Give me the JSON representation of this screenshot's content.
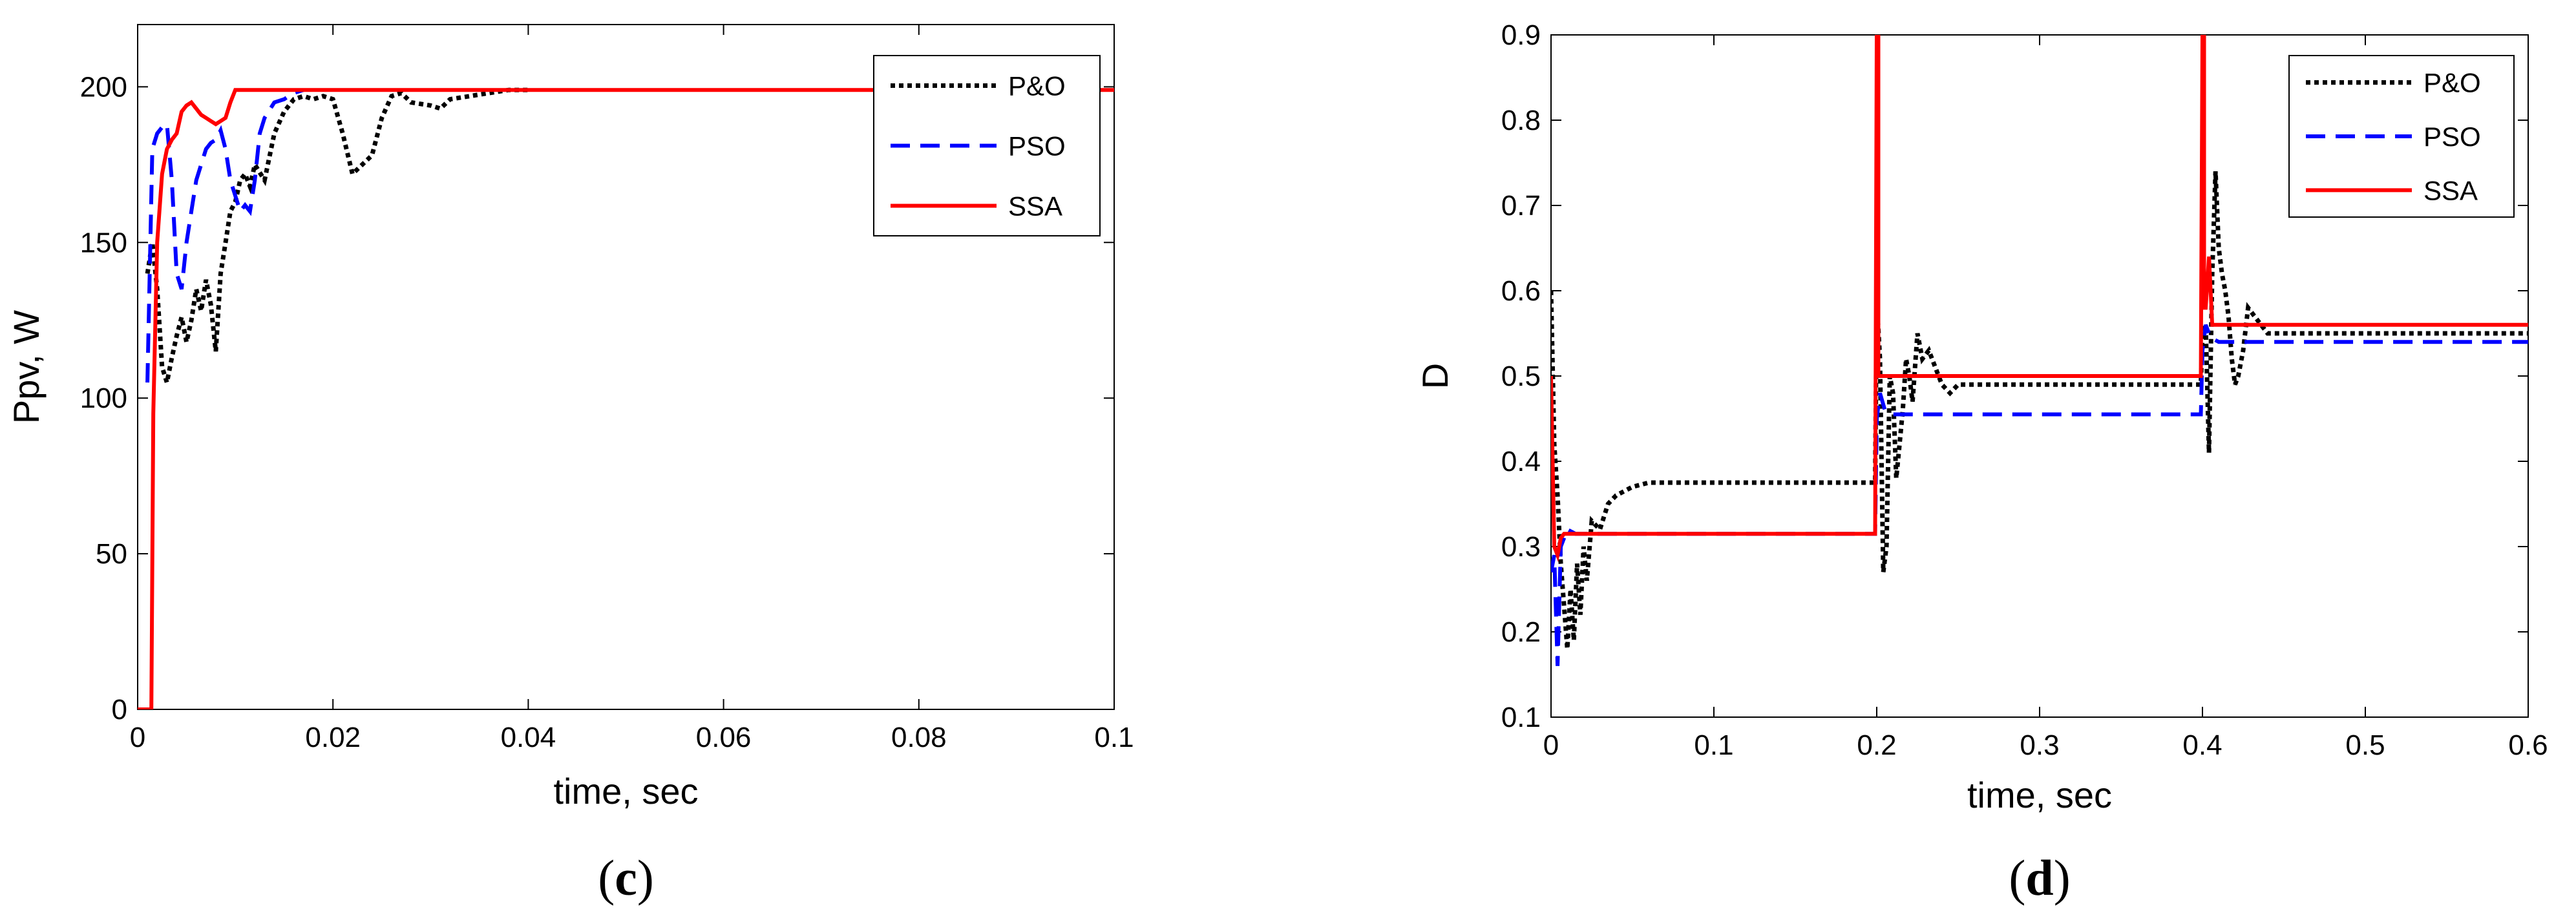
{
  "chart_data": [
    {
      "type": "line",
      "panel_label": {
        "open": "(",
        "letter": "c",
        "close": ")"
      },
      "xlabel": "time, sec",
      "ylabel": "Ppv, W",
      "xlim": [
        0,
        0.1
      ],
      "ylim": [
        0,
        220
      ],
      "x_ticks": [
        0,
        0.02,
        0.04,
        0.06,
        0.08,
        0.1
      ],
      "x_tick_labels": [
        "0",
        "0.02",
        "0.04",
        "0.06",
        "0.08",
        "0.1"
      ],
      "y_ticks": [
        0,
        50,
        100,
        150,
        200
      ],
      "y_tick_labels": [
        "0",
        "50",
        "100",
        "150",
        "200"
      ],
      "grid": false,
      "legend_position": "top-right",
      "series": [
        {
          "name": "P&O",
          "color": "#000000",
          "dash": "dotted",
          "x": [
            0.001,
            0.0015,
            0.002,
            0.0025,
            0.003,
            0.0035,
            0.004,
            0.0045,
            0.005,
            0.0055,
            0.006,
            0.0065,
            0.007,
            0.0075,
            0.008,
            0.0085,
            0.009,
            0.0095,
            0.01,
            0.0105,
            0.011,
            0.0115,
            0.012,
            0.013,
            0.014,
            0.015,
            0.016,
            0.017,
            0.018,
            0.019,
            0.02,
            0.021,
            0.022,
            0.023,
            0.024,
            0.025,
            0.026,
            0.027,
            0.028,
            0.03,
            0.031,
            0.032,
            0.034,
            0.036,
            0.038,
            0.04
          ],
          "y": [
            140,
            150,
            135,
            110,
            105,
            113,
            120,
            126,
            118,
            125,
            135,
            128,
            138,
            130,
            115,
            140,
            150,
            160,
            163,
            170,
            172,
            168,
            175,
            170,
            185,
            192,
            196,
            197,
            196,
            197,
            196,
            185,
            172,
            175,
            178,
            190,
            197,
            198,
            195,
            194,
            193,
            196,
            197,
            198,
            199,
            199
          ]
        },
        {
          "name": "PSO",
          "color": "#0000ff",
          "dash": "dashed",
          "x": [
            0.001,
            0.0015,
            0.002,
            0.0025,
            0.003,
            0.0035,
            0.004,
            0.0045,
            0.005,
            0.0055,
            0.006,
            0.0065,
            0.007,
            0.0075,
            0.008,
            0.0085,
            0.009,
            0.0095,
            0.01,
            0.0105,
            0.011,
            0.0115,
            0.012,
            0.0125,
            0.013,
            0.014,
            0.015,
            0.016,
            0.017
          ],
          "y": [
            105,
            180,
            185,
            187,
            188,
            170,
            140,
            135,
            150,
            160,
            170,
            175,
            180,
            182,
            183,
            186,
            180,
            170,
            165,
            160,
            162,
            160,
            170,
            185,
            190,
            195,
            196,
            198,
            199
          ]
        },
        {
          "name": "SSA",
          "color": "#ff0000",
          "dash": "solid",
          "x": [
            0,
            0.0014,
            0.0016,
            0.002,
            0.0025,
            0.003,
            0.0035,
            0.004,
            0.0045,
            0.005,
            0.0055,
            0.006,
            0.0065,
            0.007,
            0.0075,
            0.008,
            0.0085,
            0.009,
            0.0095,
            0.01,
            0.0105,
            0.011,
            0.015,
            0.02,
            0.04,
            0.06,
            0.08,
            0.1
          ],
          "y": [
            0,
            0,
            95,
            150,
            172,
            180,
            183,
            185,
            192,
            194,
            195,
            193,
            191,
            190,
            189,
            188,
            189,
            190,
            195,
            199,
            199,
            199,
            199,
            199,
            199,
            199,
            199,
            199
          ]
        }
      ]
    },
    {
      "type": "line",
      "panel_label": {
        "open": "(",
        "letter": "d",
        "close": ")"
      },
      "xlabel": "time, sec",
      "ylabel": "D",
      "xlim": [
        0,
        0.6
      ],
      "ylim": [
        0.1,
        0.9
      ],
      "x_ticks": [
        0,
        0.1,
        0.2,
        0.3,
        0.4,
        0.5,
        0.6
      ],
      "x_tick_labels": [
        "0",
        "0.1",
        "0.2",
        "0.3",
        "0.4",
        "0.5",
        "0.6"
      ],
      "y_ticks": [
        0.1,
        0.2,
        0.3,
        0.4,
        0.5,
        0.6,
        0.7,
        0.8,
        0.9
      ],
      "y_tick_labels": [
        "0.1",
        "0.2",
        "0.3",
        "0.4",
        "0.5",
        "0.6",
        "0.7",
        "0.8",
        "0.9"
      ],
      "grid": false,
      "legend_position": "top-right",
      "series": [
        {
          "name": "P&O",
          "color": "#000000",
          "dash": "dotted",
          "x": [
            0,
            0.002,
            0.004,
            0.006,
            0.008,
            0.01,
            0.012,
            0.014,
            0.016,
            0.018,
            0.02,
            0.022,
            0.025,
            0.03,
            0.035,
            0.04,
            0.05,
            0.06,
            0.08,
            0.1,
            0.15,
            0.199,
            0.2,
            0.202,
            0.204,
            0.206,
            0.208,
            0.21,
            0.212,
            0.214,
            0.216,
            0.218,
            0.22,
            0.222,
            0.225,
            0.228,
            0.232,
            0.236,
            0.24,
            0.245,
            0.25,
            0.26,
            0.27,
            0.3,
            0.35,
            0.399,
            0.4,
            0.402,
            0.404,
            0.406,
            0.408,
            0.41,
            0.412,
            0.414,
            0.416,
            0.418,
            0.42,
            0.422,
            0.425,
            0.428,
            0.432,
            0.436,
            0.44,
            0.45,
            0.5,
            0.55,
            0.6
          ],
          "y": [
            0.6,
            0.42,
            0.36,
            0.28,
            0.23,
            0.18,
            0.25,
            0.19,
            0.28,
            0.22,
            0.3,
            0.26,
            0.33,
            0.32,
            0.35,
            0.36,
            0.37,
            0.375,
            0.375,
            0.375,
            0.375,
            0.375,
            0.59,
            0.52,
            0.27,
            0.3,
            0.5,
            0.48,
            0.38,
            0.42,
            0.46,
            0.52,
            0.5,
            0.47,
            0.55,
            0.52,
            0.53,
            0.51,
            0.49,
            0.48,
            0.49,
            0.49,
            0.49,
            0.49,
            0.49,
            0.49,
            0.55,
            0.56,
            0.41,
            0.62,
            0.74,
            0.65,
            0.62,
            0.6,
            0.57,
            0.52,
            0.49,
            0.5,
            0.53,
            0.58,
            0.57,
            0.56,
            0.55,
            0.55,
            0.55,
            0.55,
            0.55
          ]
        },
        {
          "name": "PSO",
          "color": "#0000ff",
          "dash": "dashed",
          "x": [
            0,
            0.002,
            0.004,
            0.006,
            0.008,
            0.01,
            0.015,
            0.05,
            0.1,
            0.15,
            0.199,
            0.2,
            0.202,
            0.205,
            0.21,
            0.25,
            0.3,
            0.35,
            0.399,
            0.4,
            0.402,
            0.405,
            0.41,
            0.45,
            0.5,
            0.55,
            0.6
          ],
          "y": [
            0.27,
            0.29,
            0.16,
            0.3,
            0.31,
            0.32,
            0.315,
            0.315,
            0.315,
            0.315,
            0.315,
            0.45,
            0.48,
            0.46,
            0.455,
            0.455,
            0.455,
            0.455,
            0.455,
            0.53,
            0.56,
            0.545,
            0.54,
            0.54,
            0.54,
            0.54,
            0.54
          ]
        },
        {
          "name": "SSA",
          "color": "#ff0000",
          "dash": "solid",
          "x": [
            0,
            0.002,
            0.004,
            0.006,
            0.008,
            0.01,
            0.015,
            0.05,
            0.1,
            0.15,
            0.198,
            0.199,
            0.2,
            0.201,
            0.201,
            0.202,
            0.25,
            0.3,
            0.35,
            0.398,
            0.399,
            0.4,
            0.401,
            0.401,
            0.402,
            0.404,
            0.405,
            0.406,
            0.408,
            0.41,
            0.45,
            0.5,
            0.55,
            0.6
          ],
          "y": [
            0.5,
            0.3,
            0.29,
            0.31,
            0.315,
            0.315,
            0.315,
            0.315,
            0.315,
            0.315,
            0.315,
            0.315,
            0.9,
            0.9,
            0.5,
            0.5,
            0.5,
            0.5,
            0.5,
            0.5,
            0.5,
            0.9,
            0.9,
            0.58,
            0.58,
            0.64,
            0.6,
            0.56,
            0.56,
            0.56,
            0.56,
            0.56,
            0.56,
            0.56
          ]
        }
      ]
    }
  ]
}
